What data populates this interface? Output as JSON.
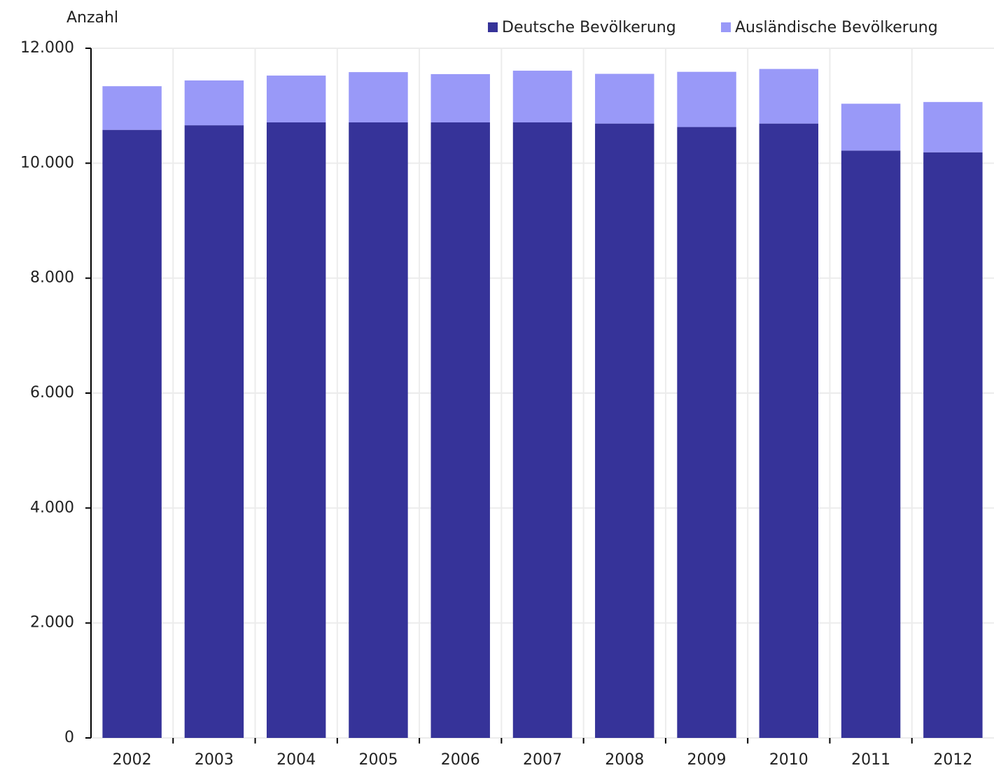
{
  "chart_data": {
    "type": "stacked_bar",
    "y_label": "Anzahl",
    "categories": [
      "2002",
      "2003",
      "2004",
      "2005",
      "2006",
      "2007",
      "2008",
      "2009",
      "2010",
      "2011",
      "2012"
    ],
    "series": [
      {
        "name": "Deutsche Bevölkerung",
        "color": "#363399",
        "values": [
          10580,
          10660,
          10710,
          10710,
          10710,
          10710,
          10690,
          10630,
          10690,
          10220,
          10190
        ]
      },
      {
        "name": "Ausländische Bevölkerung",
        "color": "#9999f8",
        "values": [
          760,
          780,
          815,
          875,
          840,
          900,
          865,
          960,
          950,
          815,
          875
        ]
      }
    ],
    "ylim": [
      0,
      12000
    ],
    "yticks": [
      0,
      {
        "value": 2000,
        "label": "2.000"
      },
      {
        "value": 4000,
        "label": "4.000"
      },
      {
        "value": 6000,
        "label": "6.000"
      },
      {
        "value": 8000,
        "label": "8.000"
      },
      {
        "value": 10000,
        "label": "10.000"
      },
      {
        "value": 12000,
        "label": "12.000"
      }
    ],
    "grid": true,
    "legend": "top-right"
  }
}
